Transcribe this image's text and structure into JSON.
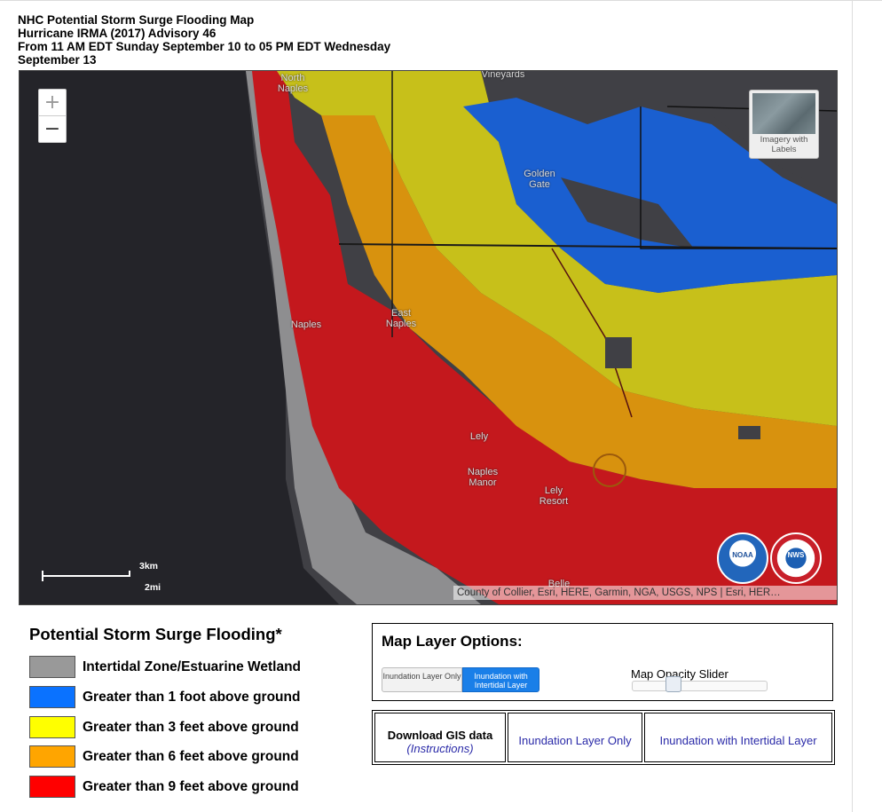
{
  "header": {
    "line1": "NHC Potential Storm Surge Flooding Map",
    "line2": "Hurricane IRMA (2017) Advisory 46",
    "line3": "From 11 AM EDT Sunday September 10 to 05 PM EDT Wednesday",
    "line4": "September 13"
  },
  "map": {
    "zoom_in": "+",
    "zoom_out": "−",
    "basemap_label": "Imagery with Labels",
    "place_labels": {
      "north_naples": "North Naples",
      "vineyards": "Vineyards",
      "golden_gate": "Golden Gate",
      "naples": "Naples",
      "east_naples": "East Naples",
      "lely": "Lely",
      "naples_manor": "Naples Manor",
      "lely_resort": "Lely Resort",
      "belle": "Belle"
    },
    "scale_km": "3km",
    "scale_mi": "2mi",
    "attribution": "County of Collier, Esri, HERE, Garmin, NGA, USGS, NPS | Esri, HER…",
    "logo_noaa": "NOAA",
    "logo_nws": "NWS"
  },
  "legend": {
    "title": "Potential Storm Surge Flooding*",
    "items": [
      {
        "label": "Intertidal Zone/Estuarine Wetland",
        "color": "#999999"
      },
      {
        "label": "Greater than 1 foot above ground",
        "color": "#0a72ff"
      },
      {
        "label": "Greater than 3 feet above ground",
        "color": "#ffff00"
      },
      {
        "label": "Greater than 6 feet above ground",
        "color": "#ffa500"
      },
      {
        "label": "Greater than 9 feet above ground",
        "color": "#ff0000"
      }
    ]
  },
  "layer_options": {
    "title": "Map Layer Options:",
    "btn_inundation_only": "Inundation Layer Only",
    "btn_inundation_intertidal": "Inundation with Intertidal Layer",
    "slider_label": "Map Opacity Slider",
    "slider_value": 0.3
  },
  "gis": {
    "download_label": "Download GIS data",
    "instructions_label": "(Instructions)",
    "link_inundation_only": "Inundation Layer Only",
    "link_inundation_intertidal": "Inundation with Intertidal Layer"
  }
}
